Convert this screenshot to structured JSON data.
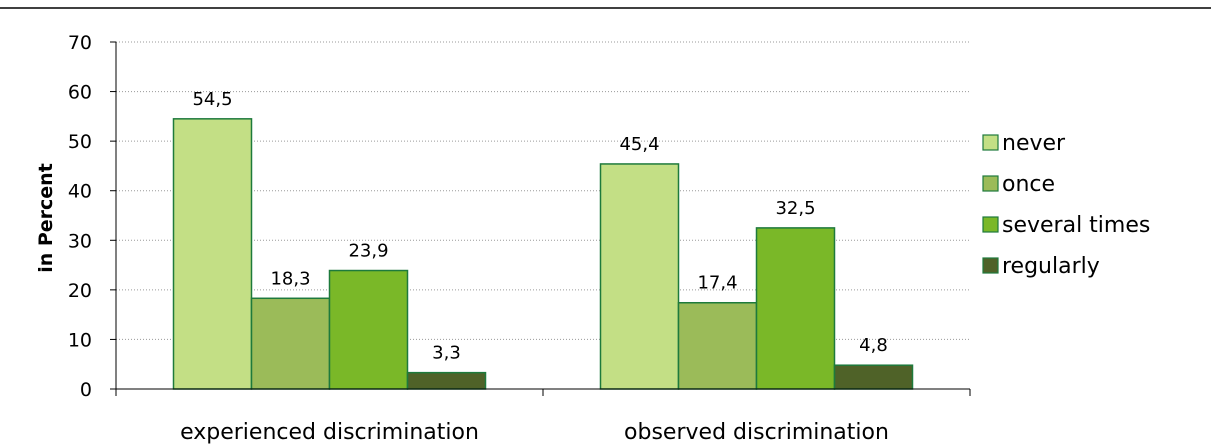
{
  "chart_data": {
    "type": "bar",
    "title": "",
    "xlabel": "",
    "ylabel": "in Percent",
    "ylim": [
      0,
      70
    ],
    "yticks": [
      0,
      10,
      20,
      30,
      40,
      50,
      60,
      70
    ],
    "grid": "horizontal dotted",
    "legend_position": "right",
    "categories": [
      "experienced discrimination",
      "observed discrimination"
    ],
    "series": [
      {
        "name": "never",
        "color": "#c3df85",
        "values": [
          54.5,
          45.4
        ],
        "labels": [
          "54,5",
          "45,4"
        ]
      },
      {
        "name": "once",
        "color": "#9bbb59",
        "values": [
          18.3,
          17.4
        ],
        "labels": [
          "18,3",
          "17,4"
        ]
      },
      {
        "name": "several times",
        "color": "#7ab828",
        "values": [
          23.9,
          32.5
        ],
        "labels": [
          "23,9",
          "32,5"
        ]
      },
      {
        "name": "regularly",
        "color": "#4f6228",
        "values": [
          3.3,
          4.8
        ],
        "labels": [
          "3,3",
          "4,8"
        ]
      }
    ],
    "border_color": "#1e7a3c"
  }
}
